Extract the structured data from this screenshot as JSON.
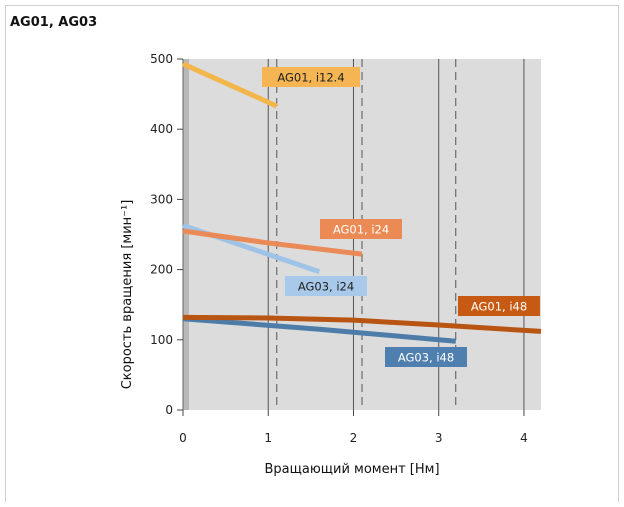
{
  "chart_data": {
    "type": "line",
    "title": "AG01, AG03",
    "xlabel": "Вращающий момент [Нм]",
    "ylabel": "Скорость вращения [мин⁻¹]",
    "xlim": [
      0,
      4.2
    ],
    "ylim": [
      0,
      500
    ],
    "x_ticks": [
      "0",
      "1",
      "2",
      "3",
      "4"
    ],
    "y_ticks": [
      "0",
      "100",
      "200",
      "300",
      "400",
      "500"
    ],
    "x_tick_values": [
      0,
      1,
      2,
      3,
      4
    ],
    "y_tick_values": [
      0,
      100,
      200,
      300,
      400,
      500
    ],
    "dashed_limits_x": [
      1.1,
      2.1,
      3.2
    ],
    "grid": true,
    "series": [
      {
        "name": "AG01, i12.4",
        "color": "#f2b64b",
        "label_color": "#f4b552",
        "label_text_color": "#222222",
        "x": [
          0,
          1.1
        ],
        "y": [
          493,
          433
        ]
      },
      {
        "name": "AG03, i24",
        "color": "#9fc3e6",
        "label_color": "#a9c9ea",
        "label_text_color": "#222222",
        "x": [
          0,
          1.6
        ],
        "y": [
          263,
          197
        ]
      },
      {
        "name": "AG01, i24",
        "color": "#e98a57",
        "label_color": "#ec8a55",
        "label_text_color": "#ffffff",
        "x": [
          0,
          1,
          2.1
        ],
        "y": [
          255,
          238,
          222
        ]
      },
      {
        "name": "AG03, i48",
        "color": "#4d7ca8",
        "label_color": "#4f7fae",
        "label_text_color": "#ffffff",
        "x": [
          0,
          1.6,
          3.2
        ],
        "y": [
          130,
          115,
          98
        ]
      },
      {
        "name": "AG01, i48",
        "color": "#b85512",
        "label_color": "#c65a12",
        "label_text_color": "#ffffff",
        "x": [
          0,
          1,
          2,
          3,
          4.2
        ],
        "y": [
          132,
          131,
          128,
          121,
          112
        ]
      }
    ]
  }
}
